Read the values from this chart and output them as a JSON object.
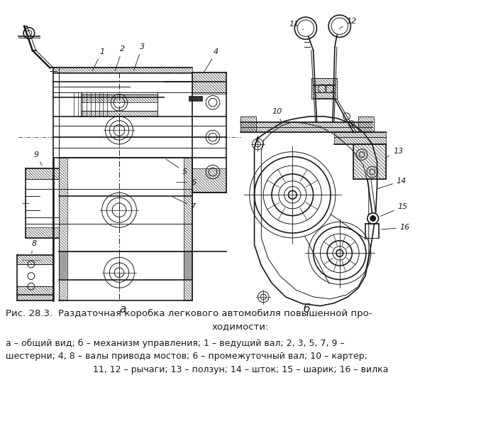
{
  "background_color": "#ffffff",
  "figure_width": 6.78,
  "figure_height": 6.18,
  "dpi": 100,
  "caption_line1_bold": "Рис. 28.3.",
  "caption_line1_rest": "  Раздаточная коробка легкового автомобиля повышенной про-",
  "caption_line2": "ходимости:",
  "caption_line3": "а — общий вид; б — механизм управления; 1 — ведущий вал; 2, 3, 5, 7, 9 —",
  "caption_line4": "шестерни; 4, 8 — валы привода мостов; 6 — промежуточный вал; 10 — картер;",
  "caption_line5": "11, 12 — рычаги; 13 — ползун; 14 — шток; 15 — шарик; 16 — вилка",
  "label_a": "а",
  "label_b": "б",
  "text_color": "#000000",
  "line_color": "#1a1a1a",
  "hatch_color": "#2a2a2a"
}
